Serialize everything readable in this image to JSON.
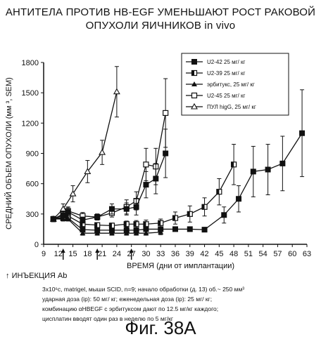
{
  "header": {
    "title_line1": "АНТИТЕЛА ПРОТИВ HB-EGF УМЕНЬШАЮТ РОСТ РАКОВОЙ",
    "title_line2": "ОПУХОЛИ ЯИЧНИКОВ in vivo"
  },
  "notes": {
    "injection_legend": "ИНЪЕКЦИЯ Ab",
    "line1": "3x10⁶c, matrigel, мыши SCID, n=9; начало обработки (д. 13) об.~ 250 мм³",
    "line2": "ударная доза (ip): 50 мг/ кг;    еженедельная доза (ip): 25 мг/ кг;",
    "line3": "комбинацию     αHBEGF   с эрбитуксом дают по    12.5 мг/кг каждого;",
    "line4": "цисплатин вводят один раз в неделю по 5 мг/кг"
  },
  "figure_label": "Фиг. 38А",
  "chart_data": {
    "type": "line",
    "title": "АНТИТЕЛА ПРОТИВ HB-EGF УМЕНЬШАЮТ РОСТ РАКОВОЙ ОПУХОЛИ ЯИЧНИКОВ in vivo",
    "xlabel": "ВРЕМЯ (дни от имплантации)",
    "ylabel": "СРЕДНИЙ ОБЪЕМ ОПУХОЛИ (мм ³, SEM)",
    "xlim": [
      9,
      63
    ],
    "ylim": [
      0,
      1800
    ],
    "x_ticks": [
      9,
      12,
      15,
      18,
      21,
      24,
      27,
      30,
      33,
      36,
      39,
      42,
      45,
      48,
      51,
      54,
      57,
      60,
      63
    ],
    "y_ticks": [
      0,
      300,
      600,
      900,
      1200,
      1500,
      1800
    ],
    "injection_days": [
      13,
      20,
      27
    ],
    "legend_position": "top-right",
    "series": [
      {
        "name": "U2-42 25 мг/ кг",
        "marker": "filled-square",
        "x": [
          11,
          13,
          14,
          17,
          20,
          23,
          26,
          28,
          30,
          33,
          36,
          39,
          42,
          46,
          49,
          52,
          55,
          58,
          62
        ],
        "y": [
          250,
          260,
          260,
          145,
          140,
          140,
          140,
          140,
          150,
          150,
          150,
          150,
          145,
          290,
          450,
          720,
          740,
          800,
          1100
        ],
        "err": [
          25,
          25,
          25,
          20,
          20,
          20,
          20,
          20,
          25,
          20,
          20,
          20,
          20,
          80,
          130,
          250,
          250,
          270,
          430
        ]
      },
      {
        "name": "U2-39 25 мг/ кг",
        "marker": "half-square",
        "x": [
          11,
          13,
          14,
          17,
          20,
          23,
          26,
          28,
          30,
          33,
          36,
          39,
          42,
          45,
          48
        ],
        "y": [
          250,
          270,
          280,
          200,
          190,
          185,
          200,
          200,
          200,
          210,
          260,
          300,
          370,
          520,
          790
        ],
        "err": [
          25,
          30,
          30,
          25,
          25,
          25,
          30,
          35,
          40,
          40,
          60,
          80,
          90,
          130,
          200
        ]
      },
      {
        "name": "эрбитукс, 25 мг/ кг",
        "marker": "triangle-filled",
        "x": [
          11,
          13,
          14,
          17,
          20,
          23,
          26,
          28,
          30,
          33
        ],
        "y": [
          250,
          250,
          250,
          110,
          110,
          110,
          110,
          110,
          110,
          120
        ],
        "err": [
          20,
          20,
          20,
          20,
          20,
          20,
          20,
          20,
          20,
          25
        ]
      },
      {
        "name": "U2-45 25 мг/ кг",
        "marker": "open-square",
        "x": [
          11,
          13,
          14,
          17,
          20,
          23,
          26,
          28,
          30,
          32,
          34
        ],
        "y": [
          250,
          300,
          330,
          280,
          270,
          310,
          370,
          430,
          790,
          770,
          1300
        ],
        "err": [
          25,
          40,
          40,
          35,
          30,
          40,
          70,
          90,
          160,
          180,
          340
        ]
      },
      {
        "name": "ПУЛ higG, 25 мг/ кг",
        "marker": "open-triangle",
        "x": [
          11,
          13,
          15,
          18,
          21,
          24
        ],
        "y": [
          250,
          350,
          500,
          720,
          910,
          1510
        ],
        "err": [
          25,
          50,
          80,
          110,
          120,
          250
        ]
      },
      {
        "name": "",
        "marker": "filled-square",
        "x": [
          11,
          13,
          14,
          17,
          20,
          23,
          26,
          28,
          30,
          32,
          34
        ],
        "y": [
          250,
          290,
          320,
          240,
          270,
          350,
          350,
          370,
          590,
          650,
          900
        ],
        "err": [
          25,
          40,
          40,
          30,
          30,
          50,
          60,
          80,
          130,
          150,
          240
        ]
      }
    ]
  }
}
